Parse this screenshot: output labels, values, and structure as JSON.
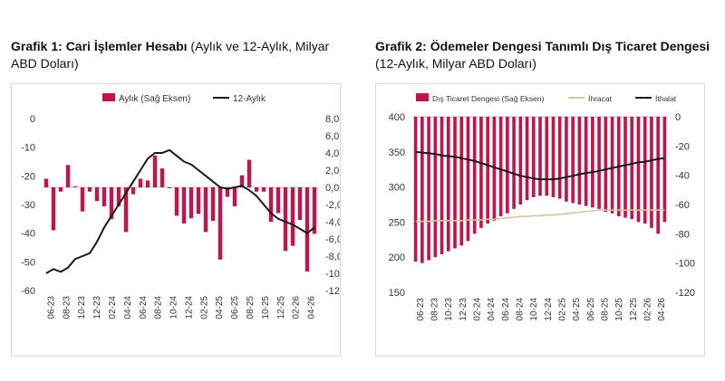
{
  "chart1": {
    "title_bold": "Grafik 1: Cari İşlemler Hesabı",
    "title_rest": " (Aylık ve 12-Aylık, Milyar ABD Doları)"
  },
  "chart2": {
    "title_bold": "Grafik 2: Ödemeler Dengesi Tanımlı Dış Ticaret Dengesi",
    "title_rest": " (12-Aylık, Milyar ABD Doları)"
  },
  "colors": {
    "bar": "#c0144a",
    "line": "#1a1a1a",
    "export_line": "#d8c3a5"
  },
  "chart_data": [
    {
      "type": "bar+line",
      "legend": [
        "Aylık (Sağ Eksen)",
        "12-Aylık"
      ],
      "legend_position": "top",
      "x_tick_labels": [
        "06-23",
        "08-23",
        "10-23",
        "12-23",
        "02-24",
        "04-24",
        "06-24",
        "08-24",
        "10-24",
        "12-24",
        "02-25",
        "04-25",
        "06-25",
        "08-25",
        "10-25",
        "12-25",
        "02-26",
        "04-26"
      ],
      "left_axis": {
        "ylim": [
          -60,
          0
        ],
        "ticks": [
          "0",
          "-10",
          "-20",
          "-30",
          "-40",
          "-50",
          "-60"
        ]
      },
      "right_axis": {
        "ylim": [
          -12,
          8
        ],
        "ticks": [
          "8,0",
          "6,0",
          "4,0",
          "2,0",
          "0,0",
          "-2,0",
          "-4,0",
          "-6,0",
          "-8,0",
          "-10,0",
          "-12,0"
        ]
      },
      "grid": false,
      "series": [
        {
          "name": "Aylık (Sağ Eksen)",
          "axis": "right",
          "kind": "bar",
          "values": [
            1.0,
            -5.0,
            -0.5,
            2.6,
            0.1,
            -2.8,
            -0.5,
            -1.6,
            -2.2,
            -3.7,
            -2.2,
            -5.2,
            -0.8,
            1.0,
            0.8,
            3.7,
            2.2,
            -0.1,
            -3.3,
            -4.2,
            -3.6,
            -3.1,
            -5.2,
            -3.9,
            -8.4,
            -1.1,
            -2.2,
            1.4,
            3.2,
            -0.5,
            -0.5,
            -4.0,
            -3.0,
            -7.4,
            -6.8,
            -3.8,
            -9.8,
            -5.4
          ]
        },
        {
          "name": "12-Aylık",
          "axis": "left",
          "kind": "line",
          "values": [
            -54,
            -52.5,
            -53.5,
            -52,
            -49,
            -48,
            -47,
            -43,
            -38,
            -34,
            -30,
            -26,
            -22,
            -18,
            -14,
            -12,
            -12,
            -11,
            -13,
            -15,
            -16,
            -18,
            -20,
            -22,
            -24,
            -24.5,
            -24,
            -23.5,
            -25,
            -27,
            -30,
            -33,
            -35,
            -36,
            -37,
            -38.5,
            -40,
            -38
          ]
        }
      ]
    },
    {
      "type": "bar+line",
      "legend": [
        "Dış Ticaret Dengesi (Sağ Eksen)",
        "İhracat",
        "İthalat"
      ],
      "legend_position": "top",
      "x_tick_labels": [
        "06-23",
        "08-23",
        "10-23",
        "12-23",
        "02-24",
        "04-24",
        "06-24",
        "08-24",
        "10-24",
        "12-24",
        "02-25",
        "04-25",
        "06-25",
        "08-25",
        "10-25",
        "12-25",
        "02-26",
        "04-26"
      ],
      "left_axis": {
        "ylim": [
          150,
          400
        ],
        "ticks": [
          "400",
          "350",
          "300",
          "250",
          "200",
          "150"
        ]
      },
      "right_axis": {
        "ylim": [
          -120,
          0
        ],
        "ticks": [
          "0",
          "-20",
          "-40",
          "-60",
          "-80",
          "-100",
          "-120"
        ]
      },
      "grid": false,
      "series": [
        {
          "name": "Dış Ticaret Dengesi (Sağ Eksen)",
          "axis": "right",
          "kind": "bar",
          "values": [
            -99,
            -100,
            -98,
            -96,
            -94,
            -92,
            -90,
            -88,
            -85,
            -80,
            -76,
            -73,
            -71,
            -68,
            -66,
            -63,
            -60,
            -57,
            -55,
            -54,
            -54,
            -55,
            -56,
            -58,
            -59,
            -60,
            -61,
            -62,
            -63,
            -65,
            -66,
            -68,
            -69,
            -70,
            -72,
            -73,
            -76,
            -80,
            -72
          ]
        },
        {
          "name": "İhracat",
          "axis": "left",
          "kind": "line",
          "values": [
            251,
            251,
            251,
            252,
            252,
            252,
            252,
            252,
            253,
            253,
            253,
            254,
            254,
            255,
            256,
            257,
            258,
            258,
            259,
            259,
            260,
            260,
            261,
            262,
            263,
            264,
            265,
            266,
            267,
            267,
            267,
            267,
            267,
            267,
            267,
            267,
            267,
            267,
            267
          ]
        },
        {
          "name": "İthalat",
          "axis": "left",
          "kind": "line",
          "values": [
            350,
            349,
            348,
            347,
            345,
            344,
            343,
            341,
            339,
            337,
            334,
            331,
            328,
            325,
            322,
            319,
            316,
            314,
            312,
            311,
            311,
            311,
            312,
            314,
            316,
            318,
            320,
            321,
            323,
            325,
            327,
            329,
            331,
            333,
            335,
            336,
            338,
            340,
            341
          ]
        }
      ]
    }
  ]
}
